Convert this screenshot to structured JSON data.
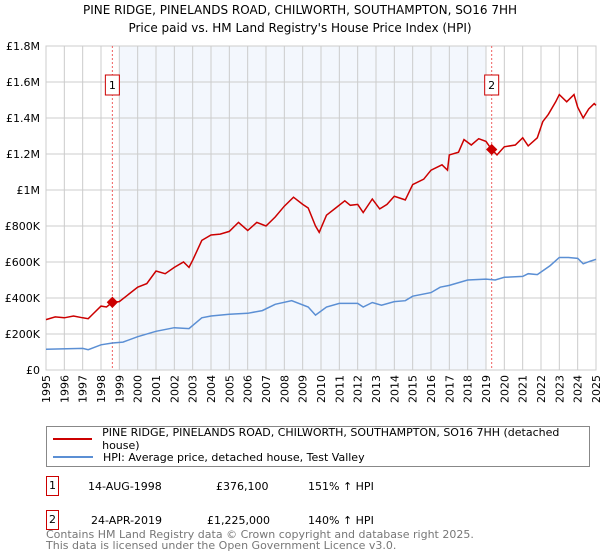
{
  "chart_data": {
    "type": "line",
    "title": "PINE RIDGE, PINELANDS ROAD, CHILWORTH, SOUTHAMPTON, SO16 7HH",
    "subtitle": "Price paid vs. HM Land Registry's House Price Index (HPI)",
    "xlim": [
      1995,
      2025
    ],
    "ylim": [
      0,
      1800000
    ],
    "x_ticks": [
      "1995",
      "1996",
      "1997",
      "1998",
      "1999",
      "2000",
      "2001",
      "2002",
      "2003",
      "2004",
      "2005",
      "2006",
      "2007",
      "2008",
      "2009",
      "2010",
      "2011",
      "2012",
      "2013",
      "2014",
      "2015",
      "2016",
      "2017",
      "2018",
      "2019",
      "2020",
      "2021",
      "2022",
      "2023",
      "2024",
      "2025"
    ],
    "y_ticks": [
      {
        "value": 0,
        "label": "£0"
      },
      {
        "value": 200000,
        "label": "£200K"
      },
      {
        "value": 400000,
        "label": "£400K"
      },
      {
        "value": 600000,
        "label": "£600K"
      },
      {
        "value": 800000,
        "label": "£800K"
      },
      {
        "value": 1000000,
        "label": "£1M"
      },
      {
        "value": 1200000,
        "label": "£1.2M"
      },
      {
        "value": 1400000,
        "label": "£1.4M"
      },
      {
        "value": 1600000,
        "label": "£1.6M"
      },
      {
        "value": 1800000,
        "label": "£1.8M"
      }
    ],
    "grid": true,
    "shaded_range": [
      1999.0,
      2019.0
    ],
    "series": [
      {
        "name": "PINE RIDGE, PINELANDS ROAD, CHILWORTH, SOUTHAMPTON, SO16 7HH (detached house)",
        "color": "#cc0000",
        "points": [
          [
            1995,
            280000
          ],
          [
            1995.5,
            295000
          ],
          [
            1996,
            290000
          ],
          [
            1996.5,
            300000
          ],
          [
            1997,
            290000
          ],
          [
            1997.3,
            285000
          ],
          [
            1997.5,
            305000
          ],
          [
            1998,
            355000
          ],
          [
            1998.3,
            350000
          ],
          [
            1998.62,
            376100
          ],
          [
            1999,
            380000
          ],
          [
            1999.5,
            420000
          ],
          [
            2000,
            460000
          ],
          [
            2000.5,
            480000
          ],
          [
            2001,
            550000
          ],
          [
            2001.5,
            535000
          ],
          [
            2002,
            570000
          ],
          [
            2002.5,
            600000
          ],
          [
            2002.8,
            570000
          ],
          [
            2003,
            610000
          ],
          [
            2003.5,
            720000
          ],
          [
            2004,
            750000
          ],
          [
            2004.5,
            755000
          ],
          [
            2005,
            770000
          ],
          [
            2005.5,
            820000
          ],
          [
            2006,
            775000
          ],
          [
            2006.5,
            820000
          ],
          [
            2007,
            800000
          ],
          [
            2007.5,
            850000
          ],
          [
            2008,
            910000
          ],
          [
            2008.5,
            960000
          ],
          [
            2009,
            920000
          ],
          [
            2009.3,
            900000
          ],
          [
            2009.7,
            800000
          ],
          [
            2009.9,
            765000
          ],
          [
            2010.3,
            860000
          ],
          [
            2010.8,
            900000
          ],
          [
            2011.3,
            940000
          ],
          [
            2011.6,
            915000
          ],
          [
            2012,
            920000
          ],
          [
            2012.3,
            875000
          ],
          [
            2012.8,
            950000
          ],
          [
            2013.2,
            895000
          ],
          [
            2013.6,
            920000
          ],
          [
            2014,
            965000
          ],
          [
            2014.6,
            945000
          ],
          [
            2015,
            1030000
          ],
          [
            2015.6,
            1060000
          ],
          [
            2016,
            1110000
          ],
          [
            2016.6,
            1140000
          ],
          [
            2016.9,
            1110000
          ],
          [
            2017,
            1195000
          ],
          [
            2017.5,
            1210000
          ],
          [
            2017.8,
            1280000
          ],
          [
            2018.2,
            1250000
          ],
          [
            2018.6,
            1285000
          ],
          [
            2019,
            1270000
          ],
          [
            2019.31,
            1225000
          ],
          [
            2019.6,
            1195000
          ],
          [
            2020,
            1240000
          ],
          [
            2020.6,
            1250000
          ],
          [
            2021,
            1290000
          ],
          [
            2021.3,
            1245000
          ],
          [
            2021.8,
            1290000
          ],
          [
            2022.1,
            1380000
          ],
          [
            2022.4,
            1420000
          ],
          [
            2022.8,
            1490000
          ],
          [
            2023,
            1530000
          ],
          [
            2023.4,
            1490000
          ],
          [
            2023.8,
            1530000
          ],
          [
            2024,
            1460000
          ],
          [
            2024.3,
            1400000
          ],
          [
            2024.6,
            1450000
          ],
          [
            2024.9,
            1480000
          ],
          [
            2025,
            1470000
          ]
        ]
      },
      {
        "name": "HPI: Average price, detached house, Test Valley",
        "color": "#5b8fd4",
        "points": [
          [
            1995,
            115000
          ],
          [
            1997,
            120000
          ],
          [
            1997.3,
            113000
          ],
          [
            1998,
            140000
          ],
          [
            1998.62,
            150000
          ],
          [
            1999.2,
            155000
          ],
          [
            2000,
            185000
          ],
          [
            2001,
            215000
          ],
          [
            2002,
            235000
          ],
          [
            2002.8,
            230000
          ],
          [
            2003.5,
            290000
          ],
          [
            2004,
            300000
          ],
          [
            2005,
            310000
          ],
          [
            2006,
            315000
          ],
          [
            2006.8,
            330000
          ],
          [
            2007.5,
            365000
          ],
          [
            2008.4,
            385000
          ],
          [
            2009.3,
            350000
          ],
          [
            2009.7,
            305000
          ],
          [
            2010.3,
            350000
          ],
          [
            2011,
            370000
          ],
          [
            2012,
            370000
          ],
          [
            2012.3,
            350000
          ],
          [
            2012.8,
            375000
          ],
          [
            2013.3,
            360000
          ],
          [
            2014,
            380000
          ],
          [
            2014.6,
            385000
          ],
          [
            2015,
            410000
          ],
          [
            2016,
            430000
          ],
          [
            2016.5,
            460000
          ],
          [
            2017,
            470000
          ],
          [
            2018,
            500000
          ],
          [
            2019,
            505000
          ],
          [
            2019.5,
            500000
          ],
          [
            2020,
            515000
          ],
          [
            2021,
            520000
          ],
          [
            2021.3,
            535000
          ],
          [
            2021.8,
            530000
          ],
          [
            2022.5,
            580000
          ],
          [
            2023,
            625000
          ],
          [
            2023.5,
            625000
          ],
          [
            2024,
            620000
          ],
          [
            2024.3,
            590000
          ],
          [
            2024.7,
            605000
          ],
          [
            2025,
            615000
          ]
        ]
      }
    ],
    "annotations": [
      {
        "label": "1",
        "x": 1998.62,
        "y": 376100
      },
      {
        "label": "2",
        "x": 2019.31,
        "y": 1225000
      }
    ]
  },
  "legend": [
    {
      "label": "PINE RIDGE, PINELANDS ROAD, CHILWORTH, SOUTHAMPTON, SO16 7HH (detached house)",
      "color": "#cc0000"
    },
    {
      "label": "HPI: Average price, detached house, Test Valley",
      "color": "#5b8fd4"
    }
  ],
  "transactions": [
    {
      "num": "1",
      "date": "14-AUG-1998",
      "price": "£376,100",
      "hpi": "151% ↑ HPI"
    },
    {
      "num": "2",
      "date": "24-APR-2019",
      "price": "£1,225,000",
      "hpi": "140% ↑ HPI"
    }
  ],
  "footer": [
    "Contains HM Land Registry data © Crown copyright and database right 2025.",
    "This data is licensed under the Open Government Licence v3.0."
  ]
}
